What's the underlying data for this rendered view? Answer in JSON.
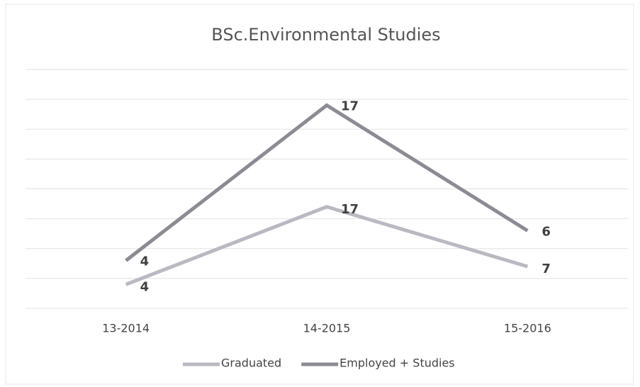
{
  "chart_data": {
    "type": "line",
    "stacked": true,
    "title": "BSc.Environmental Studies",
    "categories": [
      "13-2014",
      "14-2015",
      "15-2016"
    ],
    "series": [
      {
        "name": "Graduated",
        "color": "#b9b9c1",
        "values": [
          4,
          17,
          7
        ]
      },
      {
        "name": "Employed + Studies",
        "color": "#8b8b93",
        "values": [
          4,
          17,
          6
        ]
      }
    ],
    "ylim": [
      0,
      40
    ],
    "yticks": [
      0,
      5,
      10,
      15,
      20,
      25,
      30,
      35,
      40
    ],
    "grid": true,
    "legend": "bottom"
  }
}
